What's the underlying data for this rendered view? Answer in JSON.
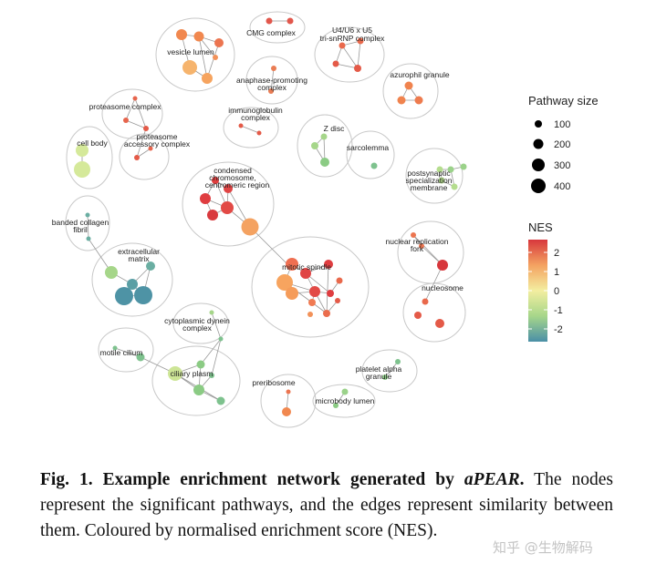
{
  "figure": {
    "legend": {
      "size_title": "Pathway size",
      "size_labels": [
        "100",
        "200",
        "300",
        "400"
      ],
      "nes_title": "NES",
      "nes_labels": [
        "2",
        "1",
        "0",
        "-1",
        "-2"
      ],
      "colors": {
        "high": "#d7373c",
        "mid_high": "#f4a261",
        "mid": "#f3eea0",
        "mid_low": "#a6d68a",
        "low": "#4a8fa6"
      }
    },
    "clusters": [
      {
        "id": "cmg",
        "labels": [
          "CMG complex"
        ]
      },
      {
        "id": "u4u6",
        "labels": [
          "U4/U6 x U5",
          "tri-snRNP complex"
        ]
      },
      {
        "id": "vesicle",
        "labels": [
          "vesicle lumen"
        ]
      },
      {
        "id": "apc",
        "labels": [
          "anaphase-promoting",
          "complex"
        ]
      },
      {
        "id": "azurophil",
        "labels": [
          "azurophil granule"
        ]
      },
      {
        "id": "proteasome",
        "labels": [
          "proteasome complex",
          "proteasome",
          "accessory complex"
        ]
      },
      {
        "id": "ig",
        "labels": [
          "immunoglobulin",
          "complex"
        ]
      },
      {
        "id": "zdisc",
        "labels": [
          "Z disc"
        ]
      },
      {
        "id": "cellbody",
        "labels": [
          "cell body"
        ]
      },
      {
        "id": "sarcolemma",
        "labels": [
          "sarcolemma"
        ]
      },
      {
        "id": "chromosome",
        "labels": [
          "condensed",
          "chromosome,",
          "centromeric region"
        ]
      },
      {
        "id": "postsyn",
        "labels": [
          "postsynaptic",
          "specialization",
          "membrane"
        ]
      },
      {
        "id": "collagen",
        "labels": [
          "banded collagen",
          "fibril"
        ]
      },
      {
        "id": "ecm",
        "labels": [
          "extracellular",
          "matrix"
        ]
      },
      {
        "id": "replication",
        "labels": [
          "nuclear replication",
          "fork"
        ]
      },
      {
        "id": "spindle",
        "labels": [
          "mitotic spindle"
        ]
      },
      {
        "id": "nucleosome",
        "labels": [
          "nucleosome"
        ]
      },
      {
        "id": "dynein",
        "labels": [
          "cytoplasmic dynein",
          "complex"
        ]
      },
      {
        "id": "cilium",
        "labels": [
          "motile cilium"
        ]
      },
      {
        "id": "ciliary",
        "labels": [
          "ciliary plasm"
        ]
      },
      {
        "id": "platelet",
        "labels": [
          "platelet alpha",
          "granule"
        ]
      },
      {
        "id": "preribosome",
        "labels": [
          "preribosome"
        ]
      },
      {
        "id": "microbody",
        "labels": [
          "microbody lumen"
        ]
      }
    ]
  },
  "caption": {
    "bold": "Fig. 1. Example enrichment network generated by ",
    "tool": "aPEAR",
    "bold_end": ".",
    "text": " The nodes represent the significant pathways, and the edges represent similarity between them. Coloured by normalised enrichment score (NES)."
  },
  "watermark": "知乎 @生物解码"
}
